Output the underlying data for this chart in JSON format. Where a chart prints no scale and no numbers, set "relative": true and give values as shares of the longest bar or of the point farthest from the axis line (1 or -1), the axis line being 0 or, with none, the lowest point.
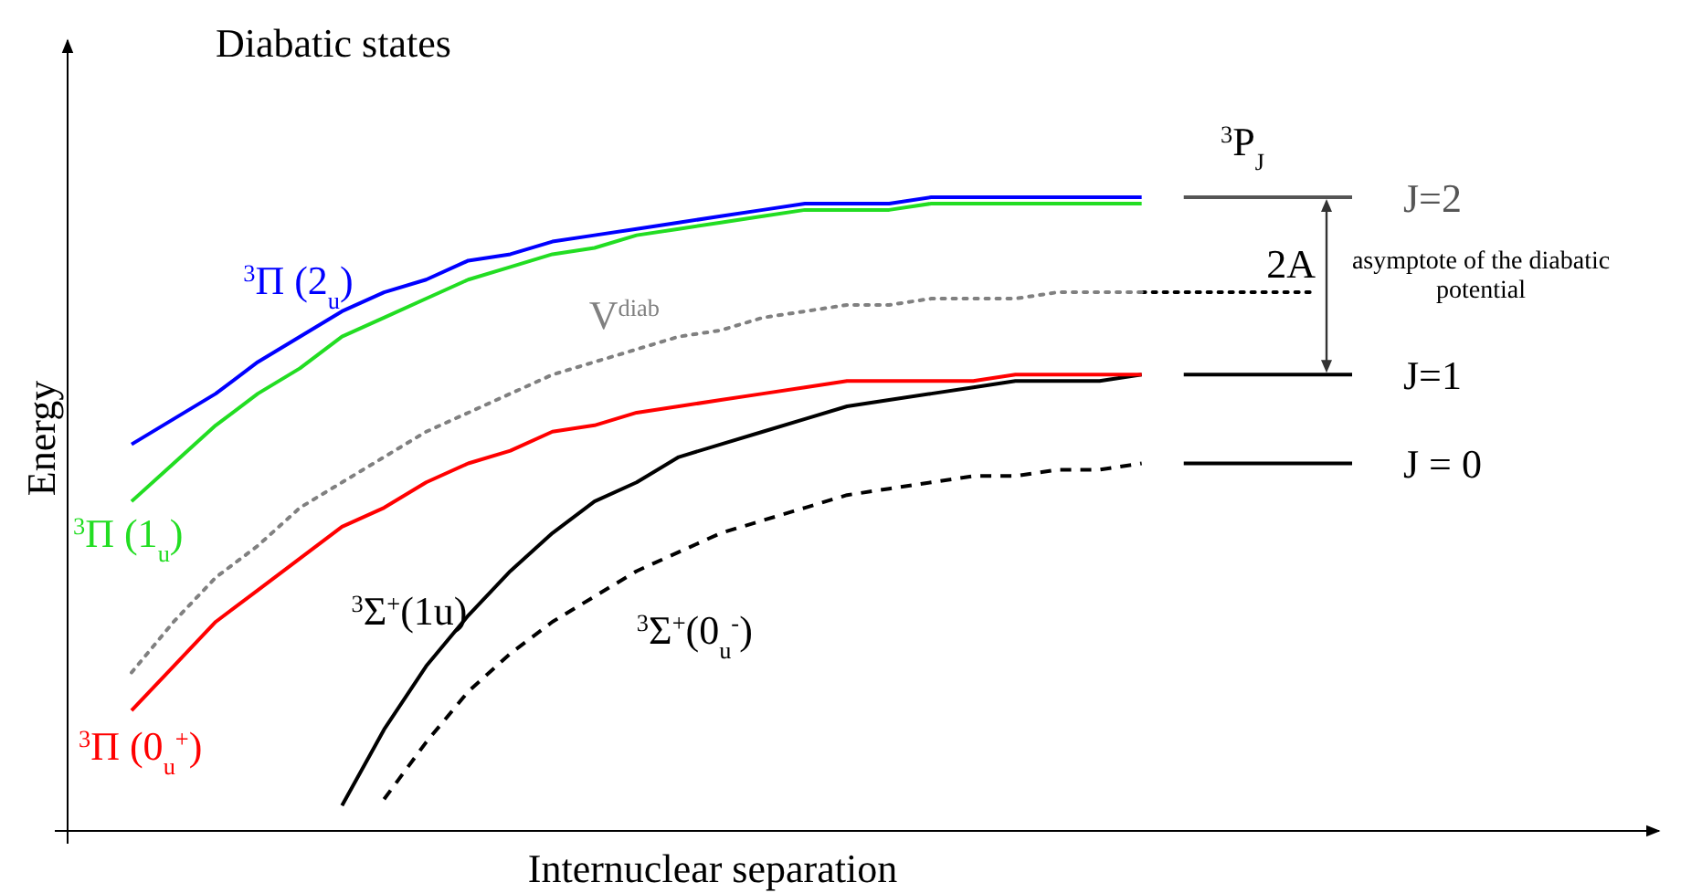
{
  "chart_data": {
    "type": "line",
    "relative": true,
    "title": "Diabatic states",
    "xlabel": "Internuclear separation",
    "ylabel": "Energy",
    "categories": [
      null,
      null,
      null,
      null,
      null,
      null,
      null,
      null,
      null,
      null,
      null,
      null,
      null,
      null,
      null,
      null,
      null,
      null,
      null,
      null,
      null,
      null,
      null,
      null,
      null,
      null,
      null,
      null,
      null,
      null
    ],
    "series": [
      {
        "name": "$^{3}$Π (2$_{u}$)",
        "color": "#0000ff",
        "line_style": "solid",
        "values": [
          0.61,
          0.65,
          0.69,
          0.74,
          0.78,
          0.82,
          0.85,
          0.87,
          0.9,
          0.91,
          0.93,
          0.94,
          0.95,
          0.96,
          0.97,
          0.98,
          0.99,
          0.99,
          0.99,
          1.0,
          1.0,
          1.0,
          1.0,
          1.0,
          1.0,
          null,
          null,
          null,
          null,
          null
        ]
      },
      {
        "name": "$^{3}$Π (1$_{u}$)",
        "color": "#22dd22",
        "line_style": "solid",
        "values": [
          0.52,
          0.58,
          0.64,
          0.69,
          0.73,
          0.78,
          0.81,
          0.84,
          0.87,
          0.89,
          0.91,
          0.92,
          0.94,
          0.95,
          0.96,
          0.97,
          0.98,
          0.98,
          0.98,
          0.99,
          0.99,
          0.99,
          0.99,
          0.99,
          0.99,
          null,
          null,
          null,
          null,
          null
        ]
      },
      {
        "name": "V$^{diab}$",
        "color": "#808080",
        "line_style": "dotted",
        "values": [
          0.25,
          0.33,
          0.4,
          0.45,
          0.51,
          0.55,
          0.59,
          0.63,
          0.66,
          0.69,
          0.72,
          0.74,
          0.76,
          0.78,
          0.79,
          0.81,
          0.82,
          0.83,
          0.83,
          0.84,
          0.84,
          0.84,
          0.85,
          0.85,
          0.85,
          null,
          null,
          null,
          null,
          null
        ]
      },
      {
        "name": "$^{3}$Π (0$_{u}$$^{+}$)",
        "color": "#ff0000",
        "line_style": "solid",
        "values": [
          0.19,
          0.26,
          0.33,
          0.38,
          0.43,
          0.48,
          0.51,
          0.55,
          0.58,
          0.6,
          0.63,
          0.64,
          0.66,
          0.67,
          0.68,
          0.69,
          0.7,
          0.71,
          0.71,
          0.71,
          0.71,
          0.72,
          0.72,
          0.72,
          0.72,
          null,
          null,
          null,
          null,
          null
        ]
      },
      {
        "name": "$^{3}$Σ$^{+}$(1u)",
        "color": "#000000",
        "line_style": "solid",
        "values": [
          null,
          null,
          null,
          null,
          null,
          0.04,
          0.16,
          0.26,
          0.34,
          0.41,
          0.47,
          0.52,
          0.55,
          0.59,
          0.61,
          0.63,
          0.65,
          0.67,
          0.68,
          0.69,
          0.7,
          0.71,
          0.71,
          0.71,
          0.72,
          null,
          null,
          null,
          null,
          null
        ]
      },
      {
        "name": "$^{3}$Σ$^{+}$(0$_{u}$$^{-}$)",
        "color": "#000000",
        "line_style": "dashed",
        "values": [
          null,
          null,
          null,
          null,
          null,
          null,
          0.05,
          0.14,
          0.22,
          0.28,
          0.33,
          0.37,
          0.41,
          0.44,
          0.47,
          0.49,
          0.51,
          0.53,
          0.54,
          0.55,
          0.56,
          0.56,
          0.57,
          0.57,
          0.58,
          null,
          null,
          null,
          null,
          null
        ]
      },
      {
        "name": "J=2",
        "color": "#555555",
        "line_style": "solid",
        "values": [
          null,
          null,
          null,
          null,
          null,
          null,
          null,
          null,
          null,
          null,
          null,
          null,
          null,
          null,
          null,
          null,
          null,
          null,
          null,
          null,
          null,
          null,
          null,
          null,
          null,
          1.0,
          1.0,
          1.0,
          1.0,
          1.0
        ]
      },
      {
        "name": "asymptote of the diabatic potential",
        "color": "#000000",
        "line_style": "dotted",
        "values": [
          null,
          null,
          null,
          null,
          null,
          null,
          null,
          null,
          null,
          null,
          null,
          null,
          null,
          null,
          null,
          null,
          null,
          null,
          null,
          null,
          null,
          null,
          null,
          null,
          0.85,
          0.85,
          0.85,
          0.85,
          0.85,
          null
        ]
      },
      {
        "name": "J=1",
        "color": "#000000",
        "line_style": "solid",
        "values": [
          null,
          null,
          null,
          null,
          null,
          null,
          null,
          null,
          null,
          null,
          null,
          null,
          null,
          null,
          null,
          null,
          null,
          null,
          null,
          null,
          null,
          null,
          null,
          null,
          null,
          0.72,
          0.72,
          0.72,
          0.72,
          0.72
        ]
      },
      {
        "name": "J = 0",
        "color": "#000000",
        "line_style": "solid",
        "values": [
          null,
          null,
          null,
          null,
          null,
          null,
          null,
          null,
          null,
          null,
          null,
          null,
          null,
          null,
          null,
          null,
          null,
          null,
          null,
          null,
          null,
          null,
          null,
          null,
          null,
          0.58,
          0.58,
          0.58,
          0.58,
          0.58
        ]
      }
    ],
    "annotations": [
      "$^{3}$P$_{J}$",
      "2A"
    ]
  }
}
